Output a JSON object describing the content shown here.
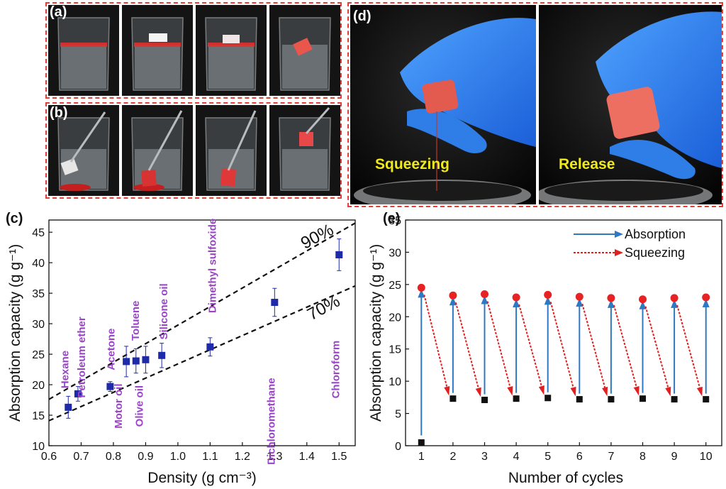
{
  "panels": {
    "a": {
      "label": "(a)"
    },
    "b": {
      "label": "(b)"
    },
    "c": {
      "label": "(c)"
    },
    "d": {
      "label": "(d)",
      "left_caption": "Squeezing",
      "right_caption": "Release"
    },
    "e": {
      "label": "(e)"
    }
  },
  "colors": {
    "frame": "#e0403a",
    "marker_c": "#1f2aa8",
    "line_absorb": "#2e78c4",
    "line_squeeze": "#e02020",
    "annot": "#9a44c8"
  },
  "chart_data": [
    {
      "type": "scatter",
      "xlabel": "Density (g cm⁻³)",
      "ylabel": "Absorption capacity (g g⁻¹)",
      "xlim": [
        0.6,
        1.55
      ],
      "ylim": [
        10,
        47
      ],
      "xticks": [
        "0.6",
        "0.7",
        "0.8",
        "0.9",
        "1.0",
        "1.1",
        "1.2",
        "1.3",
        "1.4",
        "1.5"
      ],
      "yticks": [
        "10",
        "15",
        "20",
        "25",
        "30",
        "35",
        "40",
        "45"
      ],
      "points": [
        {
          "x": 0.66,
          "y": 16.3,
          "err": 1.8,
          "name": "Hexane"
        },
        {
          "x": 0.69,
          "y": 18.5,
          "err": 1.2,
          "name": "Petroleum ether"
        },
        {
          "x": 0.79,
          "y": 19.7,
          "err": 0.8,
          "name": "Acetone"
        },
        {
          "x": 0.84,
          "y": 23.8,
          "err": 2.5,
          "name": "Motor oil"
        },
        {
          "x": 0.87,
          "y": 23.9,
          "err": 2.0,
          "name": "Toluene"
        },
        {
          "x": 0.9,
          "y": 24.1,
          "err": 2.2,
          "name": "Olive oil"
        },
        {
          "x": 0.95,
          "y": 24.8,
          "err": 2.0,
          "name": "Silicone oil"
        },
        {
          "x": 1.1,
          "y": 26.2,
          "err": 1.5,
          "name": "Dimethyl sulfoxide"
        },
        {
          "x": 1.3,
          "y": 33.5,
          "err": 2.3,
          "name": "Dichloromethane"
        },
        {
          "x": 1.5,
          "y": 41.3,
          "err": 2.6,
          "name": "Chloroform"
        }
      ],
      "lines": [
        {
          "label": "90%",
          "x": [
            0.6,
            1.55
          ],
          "y": [
            17.6,
            46.5
          ]
        },
        {
          "label": "70%",
          "x": [
            0.6,
            1.55
          ],
          "y": [
            14.1,
            36.2
          ]
        }
      ]
    },
    {
      "type": "scatter",
      "xlabel": "Number of cycles",
      "ylabel": "Absorption capacity (g g⁻¹)",
      "xlim": [
        0.5,
        10.5
      ],
      "ylim": [
        0,
        35
      ],
      "xticks": [
        "1",
        "2",
        "3",
        "4",
        "5",
        "6",
        "7",
        "8",
        "9",
        "10"
      ],
      "yticks": [
        "0",
        "5",
        "10",
        "15",
        "20",
        "25",
        "30",
        "35"
      ],
      "legend": [
        "Absorption",
        "Squeezing"
      ],
      "cycles": [
        1,
        2,
        3,
        4,
        5,
        6,
        7,
        8,
        9,
        10
      ],
      "absorbed": [
        24.5,
        23.3,
        23.5,
        23.0,
        23.4,
        23.1,
        22.9,
        22.7,
        22.9,
        23.0
      ],
      "squeezed": [
        0.5,
        7.3,
        7.1,
        7.3,
        7.4,
        7.2,
        7.2,
        7.3,
        7.2,
        7.2
      ]
    }
  ]
}
